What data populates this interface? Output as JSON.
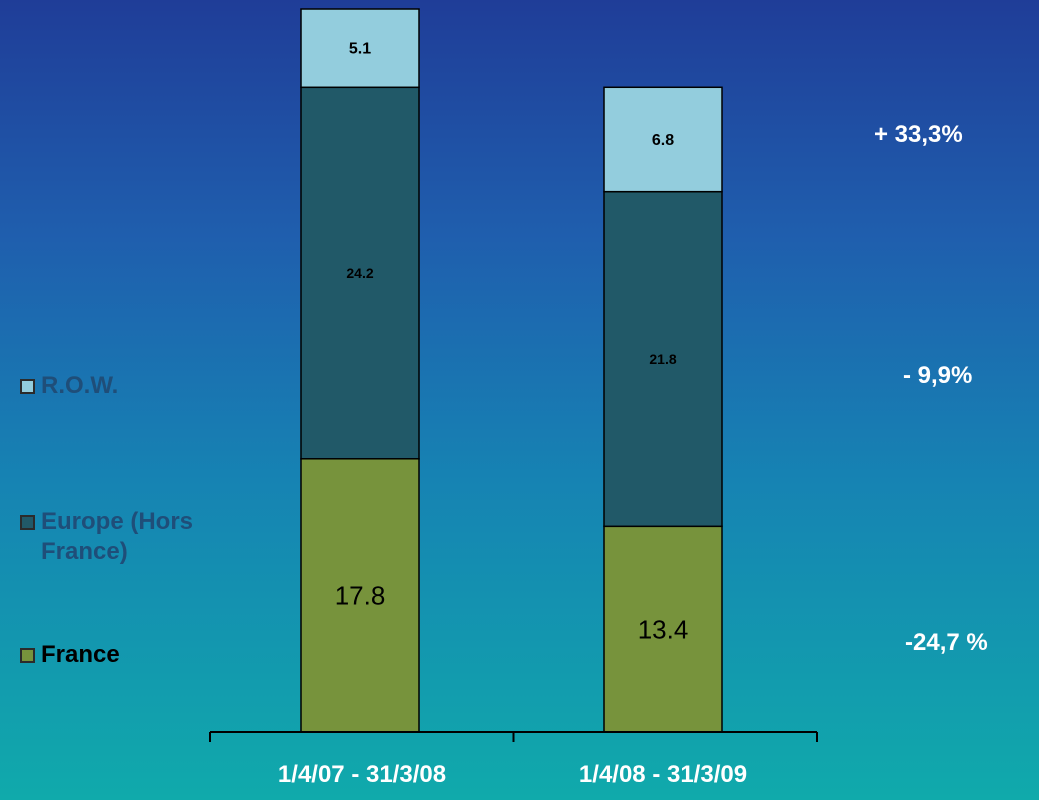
{
  "chart_data": {
    "type": "bar",
    "stacked": true,
    "categories": [
      "1/4/07 - 31/3/08",
      "1/4/08 - 31/3/09"
    ],
    "series": [
      {
        "name": "France",
        "values": [
          17.8,
          13.4
        ],
        "color": "#77933c",
        "label_color": "#000000"
      },
      {
        "name": "Europe (Hors France)",
        "values": [
          24.2,
          21.8
        ],
        "color": "#215968",
        "label_color": "#000000"
      },
      {
        "name": "R.O.W.",
        "values": [
          5.1,
          6.8
        ],
        "color": "#93cddd",
        "label_color": "#000000"
      }
    ],
    "data_labels": [
      [
        "17.8",
        "13.4"
      ],
      [
        "24.2",
        "21.8"
      ],
      [
        "5.1",
        "6.8"
      ]
    ],
    "changes": [
      {
        "series": "R.O.W.",
        "label": "+ 33,3%"
      },
      {
        "series": "Europe (Hors France)",
        "label": "- 9,9%"
      },
      {
        "series": "France",
        "label": "-24,7 %"
      }
    ],
    "legend": {
      "placement": "left",
      "items": [
        {
          "label": "R.O.W.",
          "color": "#93cddd",
          "text_color": "#1f4e79"
        },
        {
          "label": "Europe (Hors France)",
          "color": "#215968",
          "text_color": "#1f4e79"
        },
        {
          "label": "France",
          "color": "#77933c",
          "text_color": "#000000"
        }
      ]
    },
    "ylim": [
      0,
      47.1
    ],
    "grid": false
  }
}
